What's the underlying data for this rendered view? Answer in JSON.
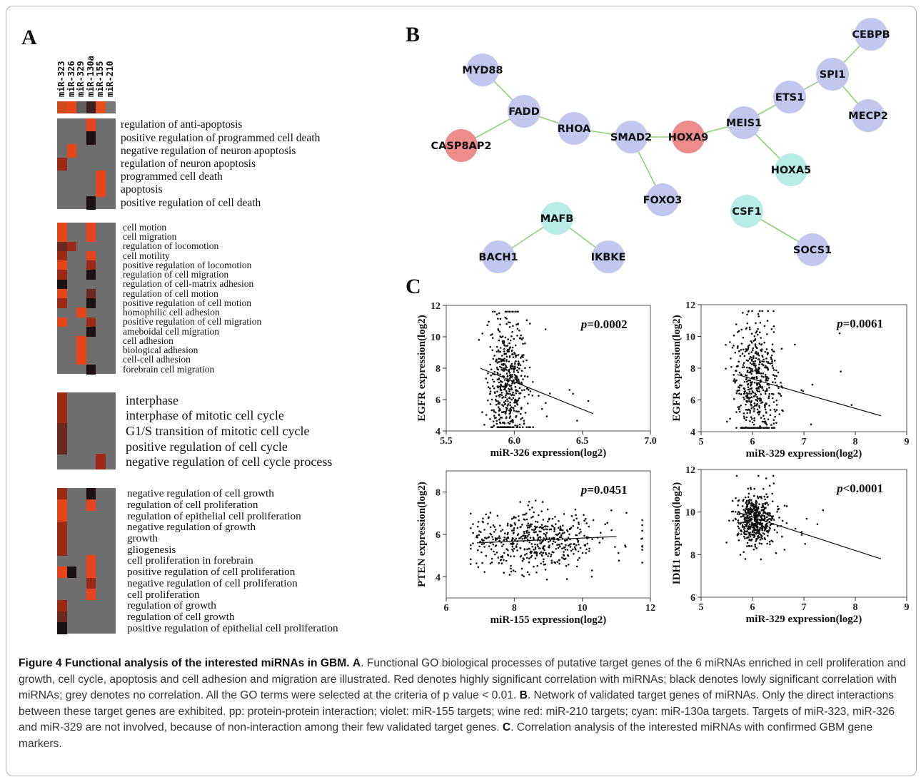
{
  "panels": {
    "a": "A",
    "b": "B",
    "c": "C"
  },
  "heatmap": {
    "columns": [
      "miR-323",
      "miR-326",
      "miR-329",
      "miR-130a",
      "miR-155",
      "miR-210"
    ],
    "header_colors": [
      "#d24a1c",
      "#e8451a",
      "#5e5e5e",
      "#3a2222",
      "#e2501e",
      "#787878"
    ],
    "colors": {
      "grey": "#6f6f6f",
      "red": "#e8451a",
      "dark_red": "#9c2a16",
      "brown": "#6a2a22",
      "black": "#1a1212"
    },
    "blocks": [
      {
        "terms": [
          "regulation of anti-apoptosis",
          "positive regulation of programmed cell death",
          "negative regulation of neuron apoptosis",
          "regulation of neuron apoptosis",
          "programmed cell death",
          "apoptosis",
          "positive regulation of cell death"
        ],
        "cells": [
          [
            "g",
            "g",
            "g",
            "r",
            "g",
            "g"
          ],
          [
            "g",
            "g",
            "g",
            "k",
            "g",
            "g"
          ],
          [
            "g",
            "r",
            "g",
            "g",
            "g",
            "g"
          ],
          [
            "d",
            "g",
            "g",
            "g",
            "g",
            "g"
          ],
          [
            "g",
            "g",
            "g",
            "g",
            "r",
            "g"
          ],
          [
            "g",
            "g",
            "g",
            "g",
            "r",
            "g"
          ],
          [
            "g",
            "g",
            "g",
            "k",
            "g",
            "g"
          ]
        ]
      },
      {
        "terms": [
          "cell motion",
          "cell migration",
          "regulation of locomotion",
          "cell motility",
          "positive regulation of locomotion",
          "regulation of cell migration",
          "regulation of cell-matrix adhesion",
          "regulation of cell motion",
          "positive regulation of cell motion",
          "homophilic cell adhesion",
          "positive regulation of cell migration",
          "ameboidal cell migration",
          "cell adhesion",
          "biological adhesion",
          "cell-cell adhesion",
          "forebrain cell migration"
        ],
        "cells": [
          [
            "r",
            "g",
            "g",
            "r",
            "g",
            "g"
          ],
          [
            "r",
            "g",
            "g",
            "r",
            "g",
            "g"
          ],
          [
            "b",
            "d",
            "g",
            "g",
            "g",
            "g"
          ],
          [
            "d",
            "g",
            "g",
            "r",
            "g",
            "g"
          ],
          [
            "r",
            "g",
            "g",
            "d",
            "g",
            "g"
          ],
          [
            "d",
            "g",
            "g",
            "k",
            "g",
            "g"
          ],
          [
            "k",
            "g",
            "g",
            "g",
            "g",
            "g"
          ],
          [
            "r",
            "g",
            "g",
            "b",
            "g",
            "g"
          ],
          [
            "d",
            "g",
            "g",
            "k",
            "g",
            "g"
          ],
          [
            "g",
            "g",
            "r",
            "g",
            "g",
            "g"
          ],
          [
            "r",
            "g",
            "g",
            "d",
            "g",
            "g"
          ],
          [
            "g",
            "g",
            "g",
            "k",
            "g",
            "g"
          ],
          [
            "g",
            "g",
            "r",
            "g",
            "g",
            "g"
          ],
          [
            "g",
            "g",
            "r",
            "g",
            "g",
            "g"
          ],
          [
            "g",
            "g",
            "r",
            "g",
            "g",
            "g"
          ],
          [
            "g",
            "g",
            "g",
            "k",
            "g",
            "g"
          ]
        ]
      },
      {
        "terms": [
          "interphase",
          "interphase of mitotic cell cycle",
          "G1/S transition of mitotic cell cycle",
          "positive regulation of cell cycle",
          "negative regulation of cell cycle process"
        ],
        "cells": [
          [
            "d",
            "g",
            "g",
            "g",
            "g",
            "g"
          ],
          [
            "d",
            "g",
            "g",
            "g",
            "g",
            "g"
          ],
          [
            "b",
            "g",
            "g",
            "g",
            "g",
            "g"
          ],
          [
            "b",
            "g",
            "g",
            "g",
            "g",
            "g"
          ],
          [
            "g",
            "g",
            "g",
            "g",
            "d",
            "g"
          ]
        ]
      },
      {
        "terms": [
          "negative regulation of cell growth",
          "regulation of cell proliferation",
          "regulation of epithelial cell proliferation",
          "negative regulation of growth",
          "growth",
          "gliogenesis",
          "cell proliferation in forebrain",
          "positive regulation of cell proliferation",
          "negative regulation of cell proliferation",
          "cell proliferation",
          "regulation of growth",
          "regulation of cell growth",
          "positive regulation of epithelial cell proliferation"
        ],
        "cells": [
          [
            "d",
            "g",
            "g",
            "k",
            "g",
            "g"
          ],
          [
            "r",
            "g",
            "g",
            "r",
            "g",
            "g"
          ],
          [
            "r",
            "g",
            "g",
            "g",
            "g",
            "g"
          ],
          [
            "d",
            "g",
            "g",
            "g",
            "g",
            "g"
          ],
          [
            "d",
            "g",
            "g",
            "g",
            "g",
            "g"
          ],
          [
            "d",
            "g",
            "g",
            "g",
            "g",
            "g"
          ],
          [
            "g",
            "g",
            "g",
            "r",
            "g",
            "g"
          ],
          [
            "r",
            "k",
            "g",
            "r",
            "g",
            "g"
          ],
          [
            "g",
            "g",
            "g",
            "d",
            "g",
            "g"
          ],
          [
            "g",
            "g",
            "g",
            "r",
            "g",
            "g"
          ],
          [
            "d",
            "g",
            "g",
            "g",
            "g",
            "g"
          ],
          [
            "b",
            "g",
            "g",
            "g",
            "g",
            "g"
          ],
          [
            "k",
            "g",
            "g",
            "g",
            "g",
            "g"
          ]
        ]
      }
    ]
  },
  "network": {
    "colors": {
      "violet": "#c3c6ee",
      "wine_red": "#ec8c8c",
      "cyan": "#b8ece6",
      "edge": "#8fd17a"
    },
    "nodes": [
      {
        "id": "MYD88",
        "color": "violet"
      },
      {
        "id": "FADD",
        "color": "violet"
      },
      {
        "id": "CASP8AP2",
        "color": "wine_red"
      },
      {
        "id": "RHOA",
        "color": "violet"
      },
      {
        "id": "SMAD2",
        "color": "violet"
      },
      {
        "id": "HOXA9",
        "color": "wine_red"
      },
      {
        "id": "MEIS1",
        "color": "violet"
      },
      {
        "id": "ETS1",
        "color": "violet"
      },
      {
        "id": "SPI1",
        "color": "violet"
      },
      {
        "id": "CEBPB",
        "color": "violet"
      },
      {
        "id": "MECP2",
        "color": "violet"
      },
      {
        "id": "HOXA5",
        "color": "cyan"
      },
      {
        "id": "FOXO3",
        "color": "violet"
      },
      {
        "id": "MAFB",
        "color": "cyan"
      },
      {
        "id": "BACH1",
        "color": "violet"
      },
      {
        "id": "IKBKE",
        "color": "violet"
      },
      {
        "id": "CSF1",
        "color": "cyan"
      },
      {
        "id": "SOCS1",
        "color": "violet"
      }
    ],
    "edges": [
      [
        "MYD88",
        "FADD"
      ],
      [
        "FADD",
        "CASP8AP2"
      ],
      [
        "FADD",
        "RHOA"
      ],
      [
        "RHOA",
        "SMAD2"
      ],
      [
        "SMAD2",
        "HOXA9"
      ],
      [
        "SMAD2",
        "FOXO3"
      ],
      [
        "HOXA9",
        "MEIS1"
      ],
      [
        "MEIS1",
        "ETS1"
      ],
      [
        "ETS1",
        "SPI1"
      ],
      [
        "SPI1",
        "CEBPB"
      ],
      [
        "SPI1",
        "MECP2"
      ],
      [
        "MEIS1",
        "HOXA5"
      ],
      [
        "MAFB",
        "BACH1"
      ],
      [
        "MAFB",
        "IKBKE"
      ],
      [
        "CSF1",
        "SOCS1"
      ]
    ]
  },
  "chart_data": [
    {
      "type": "scatter",
      "xlabel": "miR-326 expression(log2)",
      "ylabel": "EGFR expression(log2)",
      "xlim": [
        5.5,
        7.0
      ],
      "ylim": [
        4,
        12
      ],
      "xticks": [
        "5.5",
        "6.0",
        "6.5",
        "7.0"
      ],
      "yticks": [
        "4",
        "6",
        "8",
        "10",
        "12"
      ],
      "annotation_p": "p",
      "annotation_value": "=0.0002",
      "regression_line": {
        "x": [
          5.75,
          6.58
        ],
        "y": [
          8.0,
          5.1
        ]
      },
      "points_summary": {
        "n": 520,
        "x_center": 5.95,
        "x_sd": 0.07,
        "y_center": 7.0,
        "y_sd": 2.0
      }
    },
    {
      "type": "scatter",
      "xlabel": "miR-329 expression(log2)",
      "ylabel": "EGFR expression(log2)",
      "xlim": [
        5,
        9
      ],
      "ylim": [
        4,
        12
      ],
      "xticks": [
        "5",
        "6",
        "7",
        "8",
        "9"
      ],
      "yticks": [
        "4",
        "6",
        "8",
        "10",
        "12"
      ],
      "annotation_p": "p",
      "annotation_value": "=0.0061",
      "regression_line": {
        "x": [
          5.7,
          8.5
        ],
        "y": [
          7.6,
          5.0
        ]
      },
      "points_summary": {
        "n": 520,
        "x_center": 6.05,
        "x_sd": 0.22,
        "y_center": 7.0,
        "y_sd": 2.0
      }
    },
    {
      "type": "scatter",
      "xlabel": "miR-155 expression(log2)",
      "ylabel": "PTEN expression(log2)",
      "xlim": [
        6,
        12
      ],
      "ylim": [
        3,
        9
      ],
      "xticks": [
        "6",
        "8",
        "10",
        "12"
      ],
      "yticks": [
        "4",
        "6",
        "8"
      ],
      "annotation_p": "p",
      "annotation_value": "=0.0451",
      "regression_line": {
        "x": [
          6.9,
          11.0
        ],
        "y": [
          5.6,
          5.9
        ]
      },
      "points_summary": {
        "n": 520,
        "x_center": 8.6,
        "x_sd": 0.9,
        "y_center": 5.7,
        "y_sd": 0.7
      }
    },
    {
      "type": "scatter",
      "xlabel": "miR-329 expression(log2)",
      "ylabel": "IDH1 expression(log2)",
      "xlim": [
        5,
        9
      ],
      "ylim": [
        6,
        12
      ],
      "xticks": [
        "5",
        "6",
        "7",
        "8",
        "9"
      ],
      "yticks": [
        "6",
        "8",
        "10",
        "12"
      ],
      "annotation_p": "p",
      "annotation_value": "<0.0001",
      "regression_line": {
        "x": [
          5.7,
          8.5
        ],
        "y": [
          10.0,
          7.8
        ]
      },
      "points_summary": {
        "n": 520,
        "x_center": 6.05,
        "x_sd": 0.18,
        "y_center": 9.6,
        "y_sd": 0.6
      }
    }
  ],
  "caption": {
    "title": "Figure 4 Functional analysis of the interested miRNAs in GBM.",
    "a": "A",
    "a_text": ". Functional GO biological processes of putative target genes of the 6 miRNAs enriched in cell proliferation and growth, cell cycle, apoptosis and cell adhesion and migration are illustrated. Red denotes highly significant correlation with miRNAs; black denotes lowly significant correlation with miRNAs; grey denotes no correlation. All the GO terms were selected at the criteria of p value < 0.01. ",
    "b": "B",
    "b_text": ". Network of validated target genes of miRNAs. Only the direct interactions between these target genes are exhibited. pp: protein-protein interaction; violet: miR-155 targets; wine red: miR-210 targets; cyan: miR-130a targets. Targets of miR-323, miR-326 and miR-329 are not involved, because of non-interaction among their few validated target genes. ",
    "c": "C",
    "c_text": ". Correlation analysis of the interested miRNAs with confirmed GBM gene markers."
  }
}
